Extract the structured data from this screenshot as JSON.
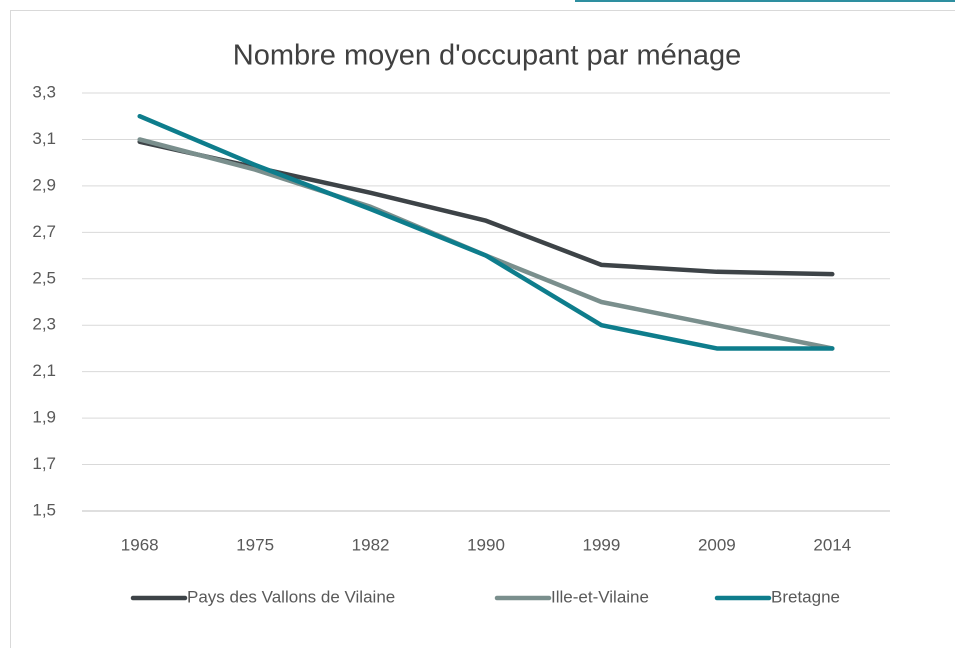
{
  "chart_data": {
    "type": "line",
    "title": "Nombre moyen d'occupant par ménage",
    "categories": [
      "1968",
      "1975",
      "1982",
      "1990",
      "1999",
      "2009",
      "2014"
    ],
    "series": [
      {
        "name": "Pays des Vallons de Vilaine",
        "color": "#3d4347",
        "values": [
          3.09,
          2.98,
          2.87,
          2.75,
          2.56,
          2.53,
          2.52
        ]
      },
      {
        "name": "Ille-et-Vilaine",
        "color": "#7a8f8d",
        "values": [
          3.1,
          2.97,
          2.81,
          2.6,
          2.4,
          2.3,
          2.2
        ]
      },
      {
        "name": "Bretagne",
        "color": "#0e7d8c",
        "values": [
          3.2,
          2.99,
          2.8,
          2.6,
          2.3,
          2.2,
          2.2
        ]
      }
    ],
    "ylim": [
      1.5,
      3.3
    ],
    "yticks": [
      {
        "value": 1.5,
        "label": "1,5"
      },
      {
        "value": 1.7,
        "label": "1,7"
      },
      {
        "value": 1.9,
        "label": "1,9"
      },
      {
        "value": 2.1,
        "label": "2,1"
      },
      {
        "value": 2.3,
        "label": "2,3"
      },
      {
        "value": 2.5,
        "label": "2,5"
      },
      {
        "value": 2.7,
        "label": "2,7"
      },
      {
        "value": 2.9,
        "label": "2,9"
      },
      {
        "value": 3.1,
        "label": "3,1"
      },
      {
        "value": 3.3,
        "label": "3,3"
      }
    ],
    "grid": true,
    "legend": "bottom"
  }
}
